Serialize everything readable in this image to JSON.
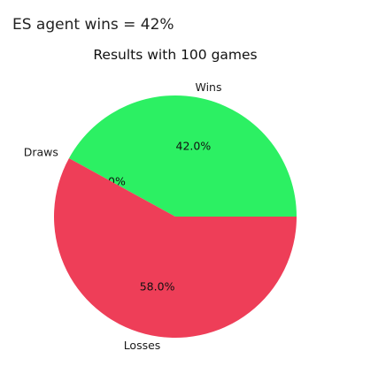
{
  "status_text": "ES agent wins = 42%",
  "chart_data": {
    "type": "pie",
    "title": "Results with 100 games",
    "categories": [
      "Wins",
      "Draws",
      "Losses"
    ],
    "values": [
      42.0,
      0.0,
      58.0
    ],
    "value_labels": [
      "42.0%",
      "0.0%",
      "58.0%"
    ],
    "colors": [
      "#2cf063",
      "#2f7bd6",
      "#ee3e58"
    ],
    "start_angle_deg": 0,
    "direction": "counterclockwise"
  }
}
